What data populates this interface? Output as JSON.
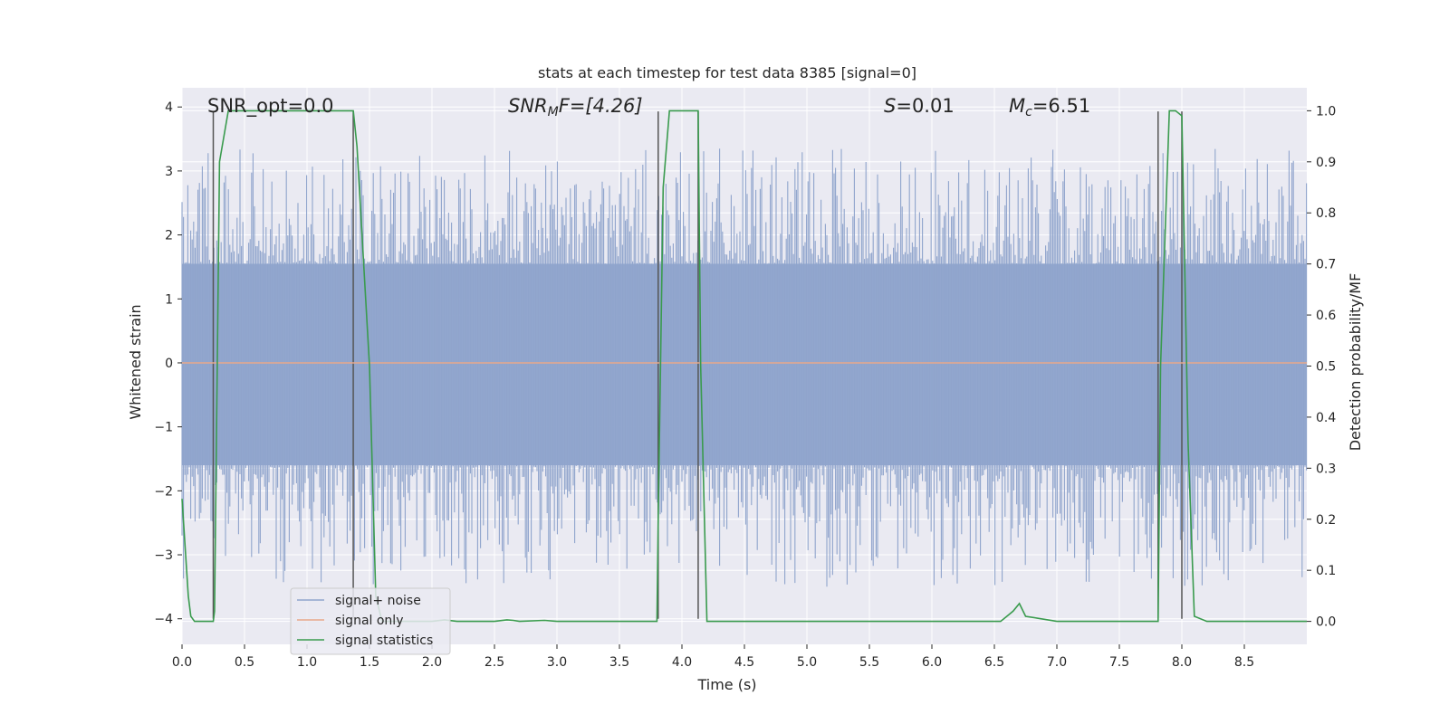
{
  "chart_data": {
    "type": "line",
    "title": "stats at each timestep for test data 8385 [signal=0]",
    "xlabel": "Time (s)",
    "ylabel_left": "Whitened strain",
    "ylabel_right": "Detection probability/MF",
    "xlim": [
      0.0,
      9.0
    ],
    "ylim_left": [
      -4.4,
      4.3
    ],
    "ylim_right": [
      -0.045,
      1.045
    ],
    "xticks": [
      "0.0",
      "0.5",
      "1.0",
      "1.5",
      "2.0",
      "2.5",
      "3.0",
      "3.5",
      "4.0",
      "4.5",
      "5.0",
      "5.5",
      "6.0",
      "6.5",
      "7.0",
      "7.5",
      "8.0",
      "8.5"
    ],
    "xtick_values": [
      0.0,
      0.5,
      1.0,
      1.5,
      2.0,
      2.5,
      3.0,
      3.5,
      4.0,
      4.5,
      5.0,
      5.5,
      6.0,
      6.5,
      7.0,
      7.5,
      8.0,
      8.5
    ],
    "yticks_left": [
      "−4",
      "−3",
      "−2",
      "−1",
      "0",
      "1",
      "2",
      "3",
      "4"
    ],
    "ytick_values_left": [
      -4,
      -3,
      -2,
      -1,
      0,
      1,
      2,
      3,
      4
    ],
    "yticks_right": [
      "0.0",
      "0.1",
      "0.2",
      "0.3",
      "0.4",
      "0.5",
      "0.6",
      "0.7",
      "0.8",
      "0.9",
      "1.0"
    ],
    "ytick_values_right": [
      0.0,
      0.1,
      0.2,
      0.3,
      0.4,
      0.5,
      0.6,
      0.7,
      0.8,
      0.9,
      1.0
    ],
    "annotations": {
      "snr_opt": "SNR_opt=0.0",
      "snr_mf_prefix": "SNR",
      "snr_mf_sub": "M",
      "snr_mf_suffix": "F=[4.26]",
      "s_prefix": "S",
      "s_suffix": "=0.01",
      "mc_prefix": "M",
      "mc_sub": "c",
      "mc_suffix": "=6.51"
    },
    "series": [
      {
        "name": "signal+ noise",
        "axis": "left",
        "color": "#8fa4cc",
        "description": "dense noise band, roughly ±1.6 core with peaks to about ±3",
        "band_low": -1.6,
        "band_high": 1.55
      },
      {
        "name": "signal only",
        "axis": "left",
        "color": "#e8a88a",
        "x": [
          0.0,
          9.0
        ],
        "y": [
          0.0,
          0.0
        ]
      },
      {
        "name": "signal statistics",
        "axis": "right",
        "color": "#3a9b4e",
        "x": [
          0.0,
          0.05,
          0.07,
          0.1,
          0.15,
          0.2,
          0.25,
          0.26,
          0.3,
          0.37,
          0.4,
          0.5,
          0.6,
          1.0,
          1.3,
          1.37,
          1.4,
          1.5,
          1.55,
          1.6,
          2.0,
          2.1,
          2.2,
          2.5,
          2.6,
          2.65,
          2.7,
          2.9,
          3.0,
          3.5,
          3.8,
          3.81,
          3.85,
          3.9,
          4.0,
          4.1,
          4.13,
          4.15,
          4.2,
          4.25,
          4.3,
          5.0,
          6.0,
          6.55,
          6.6,
          6.65,
          6.7,
          6.75,
          7.0,
          7.5,
          7.81,
          7.83,
          7.9,
          7.95,
          8.0,
          8.05,
          8.1,
          8.2,
          9.0
        ],
        "y": [
          0.24,
          0.05,
          0.01,
          0.0,
          0.0,
          0.0,
          0.0,
          0.02,
          0.9,
          1.0,
          1.0,
          1.0,
          1.0,
          1.0,
          1.0,
          1.0,
          0.93,
          0.5,
          0.05,
          0.0,
          0.0,
          0.003,
          0.0,
          0.0,
          0.003,
          0.002,
          0.0,
          0.002,
          0.0,
          0.0,
          0.0,
          0.2,
          0.85,
          1.0,
          1.0,
          1.0,
          1.0,
          0.5,
          0.0,
          0.0,
          0.0,
          0.0,
          0.0,
          0.0,
          0.01,
          0.02,
          0.035,
          0.01,
          0.0,
          0.0,
          0.0,
          0.5,
          1.0,
          1.0,
          0.99,
          0.35,
          0.01,
          0.0,
          0.0
        ]
      }
    ],
    "vertical_markers": {
      "color": "#555555",
      "x": [
        0.25,
        1.37,
        3.81,
        4.13,
        7.81,
        8.0
      ]
    },
    "legend": {
      "location": "lower-left",
      "entries": [
        "signal+ noise",
        "signal only",
        "signal statistics"
      ]
    },
    "colors": {
      "plot_background": "#eaeaf2",
      "grid": "#ffffff"
    }
  }
}
